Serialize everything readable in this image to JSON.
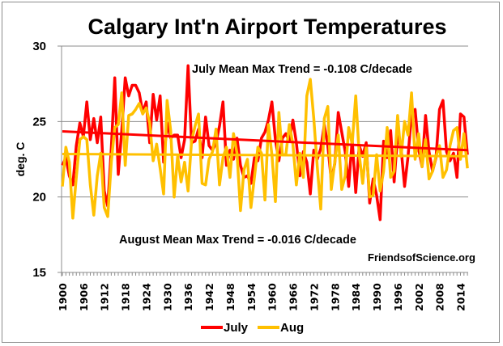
{
  "chart_data": {
    "type": "line",
    "title": "Calgary Int'n Airport Temperatures",
    "xlabel": "",
    "ylabel": "deg. C",
    "ylim": [
      15,
      30
    ],
    "yticks": [
      "15",
      "20",
      "25",
      "30"
    ],
    "xlim": [
      1900,
      2016
    ],
    "xticks": [
      "1900",
      "1906",
      "1912",
      "1918",
      "1924",
      "1930",
      "1936",
      "1942",
      "1948",
      "1954",
      "1960",
      "1966",
      "1972",
      "1978",
      "1984",
      "1990",
      "1996",
      "2002",
      "2008",
      "2014"
    ],
    "grid": "horizontal",
    "legend": "bottom",
    "annotations": {
      "july_trend": "July Mean Max Trend = -0.108 C/decade",
      "aug_trend": "August Mean Max Trend = -0.016 C/decade",
      "credit": "FriendsofScience.org"
    },
    "colors": {
      "july": "#ff0000",
      "aug": "#ffc000",
      "grid": "#8c8c8c"
    },
    "x_start": 1900,
    "series": [
      {
        "name": "July",
        "color": "#ff0000",
        "values": [
          22.1,
          22.6,
          21.4,
          20.8,
          23.4,
          24.9,
          24.0,
          26.3,
          23.8,
          25.2,
          23.6,
          25.3,
          20.4,
          19.4,
          23.2,
          27.9,
          21.5,
          24.4,
          27.9,
          26.7,
          27.4,
          27.4,
          26.9,
          25.6,
          26.3,
          23.6,
          26.8,
          25.1,
          26.7,
          22.3,
          24.9,
          23.9,
          24.1,
          24.1,
          22.6,
          23.8,
          28.7,
          23.6,
          23.7,
          24.5,
          22.6,
          25.3,
          23.4,
          23.1,
          23.6,
          24.7,
          26.3,
          22.1,
          23.1,
          22.5,
          23.9,
          22.1,
          21.3,
          21.4,
          20.9,
          22.6,
          22.4,
          23.9,
          24.3,
          25.1,
          26.3,
          23.8,
          22.4,
          23.9,
          24.2,
          23.7,
          25.1,
          23.6,
          21.4,
          23.0,
          22.3,
          20.2,
          23.1,
          22.5,
          23.2,
          24.8,
          23.4,
          21.1,
          22.2,
          25.6,
          24.3,
          23.0,
          20.7,
          23.8,
          20.3,
          23.4,
          22.7,
          23.6,
          19.6,
          21.2,
          20.1,
          18.5,
          23.7,
          22.6,
          24.4,
          21.0,
          24.1,
          23.2,
          20.7,
          22.7,
          25.6,
          25.8,
          23.2,
          22.0,
          25.4,
          23.0,
          21.7,
          22.6,
          25.8,
          26.4,
          23.0,
          22.4,
          22.9,
          21.3,
          25.5,
          25.3,
          22.8
        ]
      },
      {
        "name": "Aug",
        "color": "#ffc000",
        "values": [
          20.7,
          23.3,
          22.3,
          18.6,
          21.3,
          23.8,
          24.0,
          23.8,
          20.8,
          18.8,
          21.4,
          22.9,
          19.3,
          18.7,
          22.3,
          24.6,
          24.8,
          26.9,
          22.1,
          25.4,
          25.5,
          25.8,
          26.2,
          25.5,
          25.9,
          24.9,
          22.4,
          23.5,
          21.9,
          20.2,
          26.4,
          24.4,
          20.0,
          22.7,
          21.0,
          22.3,
          20.4,
          23.7,
          24.7,
          25.5,
          20.9,
          20.8,
          22.5,
          23.0,
          24.5,
          20.8,
          22.6,
          23.3,
          21.3,
          24.2,
          22.9,
          19.1,
          21.8,
          22.5,
          19.3,
          21.3,
          23.3,
          22.9,
          19.8,
          24.8,
          22.8,
          19.7,
          25.6,
          22.8,
          22.8,
          24.8,
          23.5,
          20.8,
          22.9,
          21.3,
          26.7,
          27.8,
          25.2,
          22.0,
          19.2,
          25.2,
          26.0,
          20.5,
          22.3,
          24.1,
          20.5,
          21.4,
          24.6,
          23.5,
          26.7,
          22.8,
          20.9,
          23.3,
          20.0,
          20.1,
          22.8,
          20.4,
          21.7,
          24.6,
          21.3,
          21.7,
          25.4,
          22.7,
          25.0,
          24.1,
          26.9,
          22.5,
          24.2,
          22.0,
          23.8,
          21.2,
          21.7,
          22.7,
          23.4,
          21.3,
          21.8,
          23.4,
          24.4,
          24.6,
          22.5,
          24.2,
          21.9
        ]
      },
      {
        "name": "July Trend",
        "color": "#ff0000",
        "endpoints": [
          [
            1900,
            24.35
          ],
          [
            2016,
            23.1
          ]
        ]
      },
      {
        "name": "Aug Trend",
        "color": "#ffc000",
        "endpoints": [
          [
            1900,
            22.85
          ],
          [
            2016,
            22.7
          ]
        ]
      }
    ]
  }
}
